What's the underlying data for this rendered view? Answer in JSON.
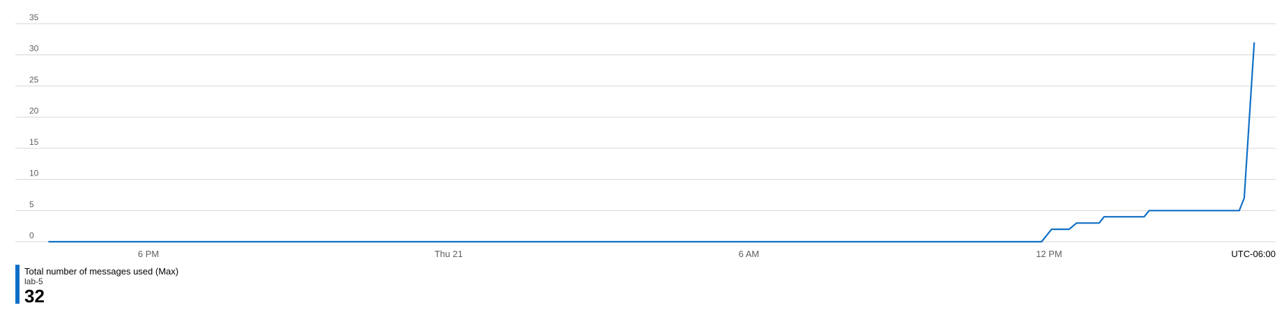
{
  "chart_data": {
    "type": "line",
    "title": "",
    "xlabel": "",
    "ylabel": "",
    "ylim": [
      0,
      35
    ],
    "y_ticks": [
      0,
      5,
      10,
      15,
      20,
      25,
      30,
      35
    ],
    "grid": true,
    "x_axis": {
      "unit": "hours",
      "min": 15.8,
      "max": 40.5,
      "tick_values": [
        18,
        24,
        30,
        36
      ],
      "tick_labels": [
        "6 PM",
        "Thu 21",
        "6 AM",
        "12 PM"
      ],
      "timezone_label": "UTC-06:00"
    },
    "series": [
      {
        "color": "#0f6fc6",
        "x": [
          16.0,
          35.85,
          36.05,
          36.4,
          36.55,
          37.0,
          37.1,
          37.9,
          38.0,
          39.8,
          39.9,
          40.1
        ],
        "y": [
          0,
          0,
          2,
          2,
          3,
          3,
          4,
          4,
          5,
          5,
          7,
          32
        ]
      }
    ]
  },
  "legend": {
    "color": "#0f6fc6",
    "metric": "Total number of messages used (Max)",
    "resource": "lab-5",
    "value": "32"
  }
}
